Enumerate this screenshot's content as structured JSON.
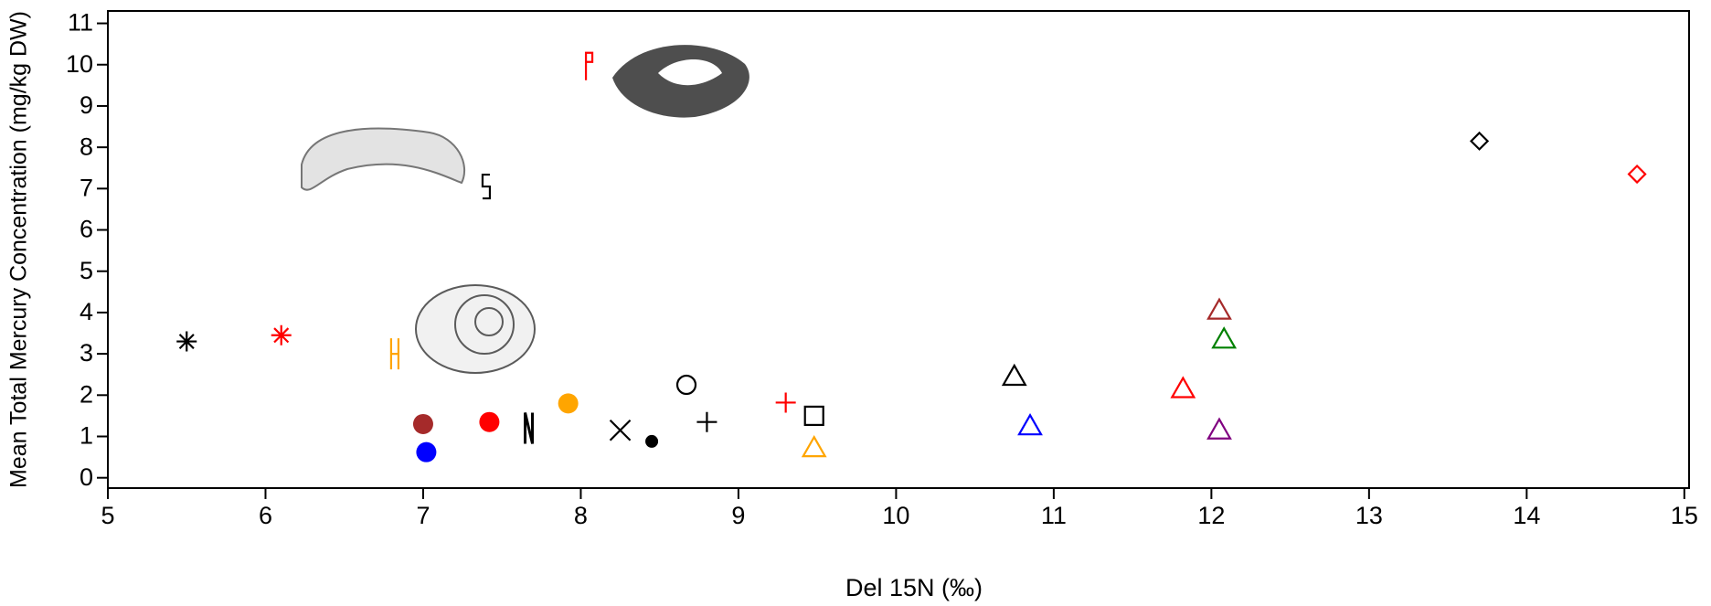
{
  "chart_data": {
    "type": "scatter",
    "x_label": "Del 15N (‰)",
    "y_label": "Mean Total Mercury Concentration (mg/kg DW)",
    "xlim": [
      5,
      15.03
    ],
    "ylim": [
      -0.25,
      11.3
    ],
    "xticks": [
      5,
      6,
      7,
      8,
      9,
      10,
      11,
      12,
      13,
      14,
      15
    ],
    "yticks": [
      0,
      1,
      2,
      3,
      4,
      5,
      6,
      7,
      8,
      9,
      10,
      11
    ],
    "series": [
      {
        "marker": "asterisk",
        "color": "#000000",
        "x": [
          5.5
        ],
        "values": [
          3.3
        ]
      },
      {
        "marker": "asterisk",
        "color": "#ff0000",
        "x": [
          6.1
        ],
        "values": [
          3.45
        ]
      },
      {
        "marker": "h-glyph",
        "color": "#ffa500",
        "x": [
          6.82
        ],
        "values": [
          3.0
        ]
      },
      {
        "marker": "dot",
        "color": "#a52a2a",
        "x": [
          7.0
        ],
        "values": [
          1.3
        ]
      },
      {
        "marker": "dot",
        "color": "#0000ff",
        "x": [
          7.02
        ],
        "values": [
          0.62
        ]
      },
      {
        "marker": "dot",
        "color": "#ff0000",
        "x": [
          7.42
        ],
        "values": [
          1.35
        ]
      },
      {
        "marker": "n-glyph",
        "color": "#000000",
        "x": [
          7.67
        ],
        "values": [
          1.2
        ]
      },
      {
        "marker": "dot",
        "color": "#ffa500",
        "x": [
          7.92
        ],
        "values": [
          1.8
        ]
      },
      {
        "marker": "x",
        "color": "#000000",
        "x": [
          8.25
        ],
        "values": [
          1.15
        ]
      },
      {
        "marker": "small-dot",
        "color": "#000000",
        "x": [
          8.45
        ],
        "values": [
          0.88
        ]
      },
      {
        "marker": "circle",
        "color": "#000000",
        "x": [
          8.67
        ],
        "values": [
          2.25
        ]
      },
      {
        "marker": "plus",
        "color": "#000000",
        "x": [
          8.8
        ],
        "values": [
          1.35
        ]
      },
      {
        "marker": "plus",
        "color": "#ff0000",
        "x": [
          9.3
        ],
        "values": [
          1.82
        ]
      },
      {
        "marker": "square",
        "color": "#000000",
        "x": [
          9.48
        ],
        "values": [
          1.5
        ]
      },
      {
        "marker": "triangle",
        "color": "#ffa500",
        "x": [
          9.48
        ],
        "values": [
          0.72
        ]
      },
      {
        "marker": "triangle",
        "color": "#000000",
        "x": [
          10.75
        ],
        "values": [
          2.45
        ]
      },
      {
        "marker": "triangle",
        "color": "#0000ff",
        "x": [
          10.85
        ],
        "values": [
          1.25
        ]
      },
      {
        "marker": "triangle",
        "color": "#ff0000",
        "x": [
          11.82
        ],
        "values": [
          2.15
        ]
      },
      {
        "marker": "triangle",
        "color": "#a52a2a",
        "x": [
          12.05
        ],
        "values": [
          4.05
        ]
      },
      {
        "marker": "triangle",
        "color": "#008000",
        "x": [
          12.08
        ],
        "values": [
          3.35
        ]
      },
      {
        "marker": "triangle",
        "color": "#800080",
        "x": [
          12.05
        ],
        "values": [
          1.15
        ]
      },
      {
        "marker": "diamond",
        "color": "#000000",
        "x": [
          13.7
        ],
        "values": [
          8.15
        ]
      },
      {
        "marker": "diamond",
        "color": "#ff0000",
        "x": [
          14.7
        ],
        "values": [
          7.35
        ]
      },
      {
        "marker": "p-glyph",
        "color": "#ff0000",
        "x": [
          8.05
        ],
        "values": [
          10.0
        ]
      },
      {
        "marker": "s-glyph",
        "color": "#000000",
        "x": [
          7.4
        ],
        "values": [
          7.05
        ]
      }
    ]
  }
}
